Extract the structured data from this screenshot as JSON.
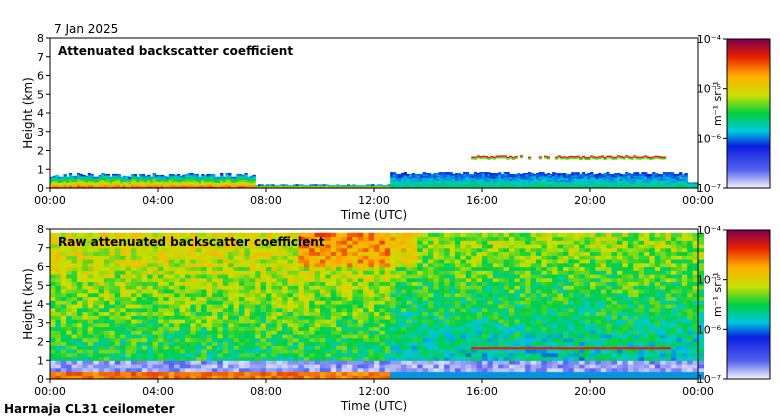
{
  "header": {
    "date": "7 Jan 2025"
  },
  "footer": {
    "station": "Harmaja CL31 ceilometer"
  },
  "chart_data": [
    {
      "type": "heatmap",
      "title": "Attenuated backscatter coefficient",
      "xlabel": "Time (UTC)",
      "ylabel": "Height (km)",
      "xlim": [
        0,
        24
      ],
      "ylim": [
        0,
        8
      ],
      "x_ticks": [
        "00:00",
        "04:00",
        "08:00",
        "12:00",
        "16:00",
        "20:00",
        "00:00"
      ],
      "y_ticks": [
        "0",
        "1",
        "2",
        "3",
        "4",
        "5",
        "6",
        "7",
        "8"
      ],
      "colorbar": {
        "unit_label": "m⁻¹ sr⁻¹",
        "ticks": [
          "10⁻⁷",
          "10⁻⁶",
          "10⁻⁵",
          "10⁻⁴"
        ],
        "range_log10": [
          -7,
          -4
        ]
      },
      "features": [
        {
          "name": "surface aerosol layer",
          "time_range_h": [
            0,
            7.5
          ],
          "top_km": 0.7
        },
        {
          "name": "residual thin layer",
          "time_range_h": [
            7.5,
            12.5
          ],
          "top_km": 0.2
        },
        {
          "name": "low cloud / aerosol",
          "time_range_h": [
            12.5,
            23.5
          ],
          "top_km": 0.8
        },
        {
          "name": "cloud layer",
          "time_range_h": [
            15.5,
            22.8
          ],
          "base_km": 1.5,
          "top_km": 1.8
        }
      ]
    },
    {
      "type": "heatmap",
      "title": "Raw attenuated backscatter coefficient",
      "xlabel": "Time (UTC)",
      "ylabel": "Height (km)",
      "xlim": [
        0,
        24
      ],
      "ylim": [
        0,
        8
      ],
      "x_ticks": [
        "00:00",
        "04:00",
        "08:00",
        "12:00",
        "16:00",
        "20:00",
        "00:00"
      ],
      "y_ticks": [
        "0",
        "1",
        "2",
        "3",
        "4",
        "5",
        "6",
        "7",
        "8"
      ],
      "colorbar": {
        "unit_label": "m⁻¹ sr⁻¹",
        "ticks": [
          "10⁻⁷",
          "10⁻⁶",
          "10⁻⁵",
          "10⁻⁴"
        ],
        "range_log10": [
          -7,
          -4
        ]
      },
      "features": [
        {
          "name": "noise field",
          "time_range_h": [
            0,
            24
          ],
          "base_km": 1.0,
          "top_km": 7.7
        },
        {
          "name": "cloud layer",
          "time_range_h": [
            15.5,
            22.8
          ],
          "base_km": 1.5,
          "top_km": 1.7
        }
      ]
    }
  ]
}
